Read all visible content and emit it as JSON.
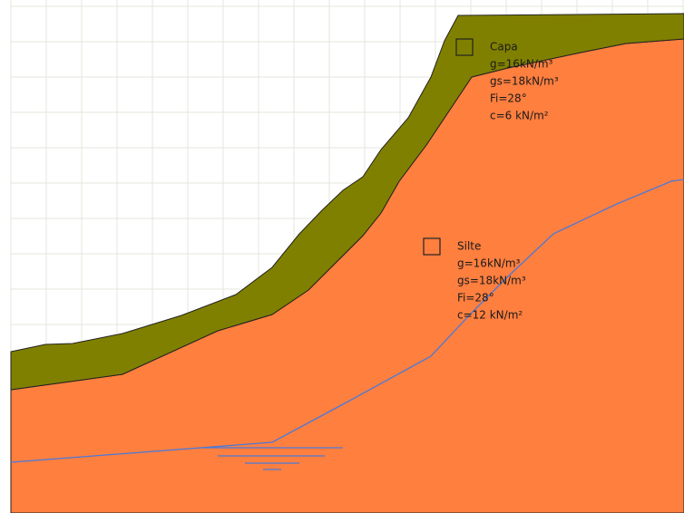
{
  "layers": [
    {
      "name": "Capa",
      "properties": [
        "g=16kN/m³",
        "gs=18kN/m³",
        "Fi=28°",
        "c=6 kN/m²"
      ]
    },
    {
      "name": "Silte",
      "properties": [
        "g=16kN/m³",
        "gs=18kN/m³",
        "Fi=28°",
        "c=12 kN/m²"
      ]
    }
  ]
}
